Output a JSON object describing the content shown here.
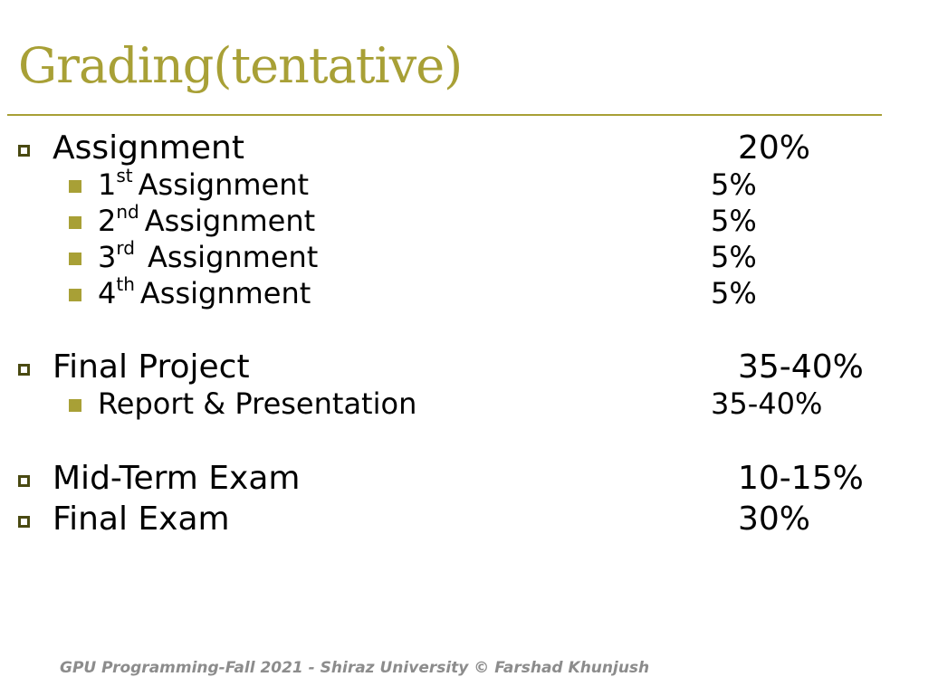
{
  "slide": {
    "title": "Grading(tentative)",
    "footer": "GPU Programming-Fall 2021 - Shiraz University © Farshad Khunjush"
  },
  "items": [
    {
      "label": "Assignment",
      "percent": "20%",
      "subitems": [
        {
          "ordinal_num": "1",
          "ordinal_suffix": "st",
          "label": "Assignment",
          "percent": "5%"
        },
        {
          "ordinal_num": "2",
          "ordinal_suffix": "nd",
          "label": "Assignment",
          "percent": "5%"
        },
        {
          "ordinal_num": "3",
          "ordinal_suffix": "rd",
          "label": "Assignment",
          "percent": "5%"
        },
        {
          "ordinal_num": "4",
          "ordinal_suffix": "th",
          "label": "Assignment",
          "percent": "5%"
        }
      ]
    },
    {
      "label": "Final Project",
      "percent": "35-40%",
      "subitems": [
        {
          "label": "Report & Presentation",
          "percent": "35-40%"
        }
      ]
    },
    {
      "label": "Mid-Term Exam",
      "percent": "10-15%"
    },
    {
      "label": "Final Exam",
      "percent": "30%"
    }
  ]
}
